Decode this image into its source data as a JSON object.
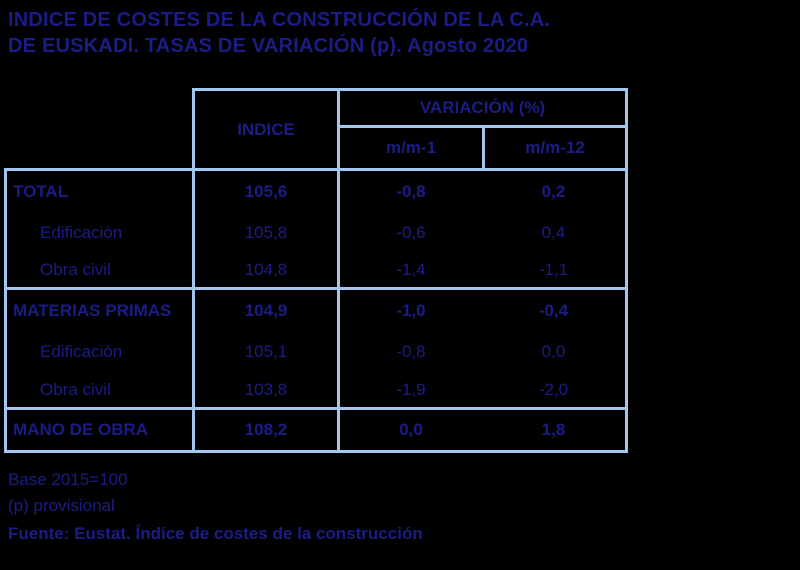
{
  "title": {
    "line1": "INDICE DE COSTES DE LA CONSTRUCCIÓN DE LA C.A.",
    "line2": "DE EUSKADI. TASAS DE VARIACIÓN (p). Agosto 2020"
  },
  "table": {
    "headers": {
      "indice": "INDICE",
      "variacion": "VARIACIÓN (%)",
      "mm1": "m/m-1",
      "mm12": "m/m-12"
    },
    "sections": [
      {
        "rows": [
          {
            "label": "TOTAL",
            "indice": "105,6",
            "mm1": "-0,8",
            "mm12": "0,2"
          },
          {
            "label": "Edificación",
            "indice": "105,8",
            "mm1": "-0,6",
            "mm12": "0,4"
          },
          {
            "label": "Obra civil",
            "indice": "104,8",
            "mm1": "-1,4",
            "mm12": "-1,1"
          }
        ]
      },
      {
        "rows": [
          {
            "label": "MATERIAS PRIMAS",
            "indice": "104,9",
            "mm1": "-1,0",
            "mm12": "-0,4"
          },
          {
            "label": "Edificación",
            "indice": "105,1",
            "mm1": "-0,8",
            "mm12": "0,0"
          },
          {
            "label": "Obra civil",
            "indice": "103,8",
            "mm1": "-1,9",
            "mm12": "-2,0"
          }
        ]
      },
      {
        "rows": [
          {
            "label": "MANO DE OBRA",
            "indice": "108,2",
            "mm1": "0,0",
            "mm12": "1,8"
          }
        ]
      }
    ]
  },
  "footer": {
    "note1": "Base 2015=100",
    "note2": "(p) provisional",
    "source": "Fuente: Eustat. Índice de costes de la construcción"
  },
  "colors": {
    "background": "#000000",
    "text": "#1C1C87",
    "border": "#A3C7EC"
  },
  "chart_data": {
    "type": "table",
    "title": "INDICE DE COSTES DE LA CONSTRUCCIÓN DE LA C.A. DE EUSKADI. TASAS DE VARIACIÓN (p). Agosto 2020",
    "columns": [
      "",
      "INDICE",
      "VARIACIÓN (%) m/m-1",
      "VARIACIÓN (%) m/m-12"
    ],
    "rows": [
      [
        "TOTAL",
        105.6,
        -0.8,
        0.2
      ],
      [
        "Edificación",
        105.8,
        -0.6,
        0.4
      ],
      [
        "Obra civil",
        104.8,
        -1.4,
        -1.1
      ],
      [
        "MATERIAS PRIMAS",
        104.9,
        -1.0,
        -0.4
      ],
      [
        "Edificación",
        105.1,
        -0.8,
        0.0
      ],
      [
        "Obra civil",
        103.8,
        -1.9,
        -2.0
      ],
      [
        "MANO DE OBRA",
        108.2,
        0.0,
        1.8
      ]
    ],
    "notes": [
      "Base 2015=100",
      "(p) provisional"
    ],
    "source": "Fuente: Eustat. Índice de costes de la construcción"
  }
}
